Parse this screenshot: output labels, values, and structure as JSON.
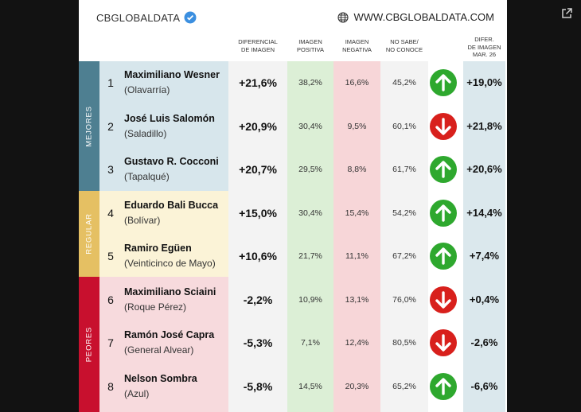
{
  "brand": {
    "name": "CBGLOBALDATA",
    "site": "WWW.CBGLOBALDATA.COM"
  },
  "headers": {
    "diff": [
      "DIFERENCIAL",
      "DE IMAGEN"
    ],
    "positive": [
      "IMAGEN",
      "POSITIVA"
    ],
    "negative": [
      "IMAGEN",
      "NEGATIVA"
    ],
    "nosabe": [
      "NO SABE/",
      "NO CONOCE"
    ],
    "prev": [
      "DIFER.",
      "DE IMAGEN",
      "MAR. 26"
    ]
  },
  "groups": {
    "top": "MEJORES",
    "mid": "REGULAR",
    "bottom": "PEORES"
  },
  "colors": {
    "top": "#4e7f91",
    "mid": "#e5c063",
    "bottom": "#c8102e",
    "top_bg": "#d7e6ec",
    "mid_bg": "#fbf3d7",
    "bottom_bg": "#f7dadd",
    "diff_bg": "#f3f3f3",
    "pos_bg": "#dcefd6",
    "neg_bg": "#f7d6d8",
    "ns_bg": "#f3f3f3",
    "prev_bg": "#dbe8ed",
    "up": "#2ea82e",
    "down": "#d8201c"
  },
  "rows": [
    {
      "rank": "1",
      "name": "Maximiliano Wesner",
      "place": "(Olavarría)",
      "diff": "+21,6%",
      "positive": "38,2%",
      "negative": "16,6%",
      "nosabe": "45,2%",
      "trend": "up",
      "prev": "+19,0%"
    },
    {
      "rank": "2",
      "name": "José Luis Salomón",
      "place": "(Saladillo)",
      "diff": "+20,9%",
      "positive": "30,4%",
      "negative": "9,5%",
      "nosabe": "60,1%",
      "trend": "down",
      "prev": "+21,8%"
    },
    {
      "rank": "3",
      "name": "Gustavo R. Cocconi",
      "place": "(Tapalqué)",
      "diff": "+20,7%",
      "positive": "29,5%",
      "negative": "8,8%",
      "nosabe": "61,7%",
      "trend": "up",
      "prev": "+20,6%"
    },
    {
      "rank": "4",
      "name": "Eduardo Bali Bucca",
      "place": "(Bolívar)",
      "diff": "+15,0%",
      "positive": "30,4%",
      "negative": "15,4%",
      "nosabe": "54,2%",
      "trend": "up",
      "prev": "+14,4%"
    },
    {
      "rank": "5",
      "name": "Ramiro Egüen",
      "place": "(Veinticinco de Mayo)",
      "diff": "+10,6%",
      "positive": "21,7%",
      "negative": "11,1%",
      "nosabe": "67,2%",
      "trend": "up",
      "prev": "+7,4%"
    },
    {
      "rank": "6",
      "name": "Maximiliano Sciaini",
      "place": "(Roque Pérez)",
      "diff": "-2,2%",
      "positive": "10,9%",
      "negative": "13,1%",
      "nosabe": "76,0%",
      "trend": "down",
      "prev": "+0,4%"
    },
    {
      "rank": "7",
      "name": "Ramón José Capra",
      "place": "(General Alvear)",
      "diff": "-5,3%",
      "positive": "7,1%",
      "negative": "12,4%",
      "nosabe": "80,5%",
      "trend": "down",
      "prev": "-2,6%"
    },
    {
      "rank": "8",
      "name": "Nelson Sombra",
      "place": "(Azul)",
      "diff": "-5,8%",
      "positive": "14,5%",
      "negative": "20,3%",
      "nosabe": "65,2%",
      "trend": "up",
      "prev": "-6,6%"
    }
  ]
}
